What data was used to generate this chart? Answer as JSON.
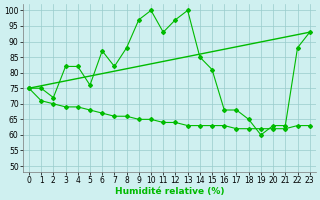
{
  "line1_x": [
    0,
    1,
    2,
    3,
    4,
    5,
    6,
    7,
    8,
    9,
    10,
    11,
    12,
    13,
    14,
    15,
    16,
    17,
    18,
    19,
    20,
    21,
    22,
    23
  ],
  "line1_y": [
    75,
    75,
    72,
    82,
    82,
    76,
    87,
    82,
    88,
    97,
    100,
    93,
    97,
    100,
    85,
    81,
    68,
    68,
    65,
    60,
    63,
    63,
    88,
    93
  ],
  "line2_x": [
    0,
    1,
    2,
    3,
    4,
    5,
    6,
    7,
    8,
    9,
    10,
    11,
    12,
    13,
    14,
    15,
    16,
    17,
    18,
    19,
    20,
    21,
    22,
    23
  ],
  "line2_y": [
    75,
    71,
    70,
    69,
    69,
    68,
    67,
    66,
    66,
    65,
    65,
    64,
    64,
    63,
    63,
    63,
    63,
    62,
    62,
    62,
    62,
    62,
    63,
    63
  ],
  "line3_x": [
    0,
    23
  ],
  "line3_y": [
    75,
    93
  ],
  "xlabel": "Humidité relative (%)",
  "xlim": [
    -0.5,
    23.5
  ],
  "ylim": [
    48,
    102
  ],
  "yticks": [
    50,
    55,
    60,
    65,
    70,
    75,
    80,
    85,
    90,
    95,
    100
  ],
  "xticks": [
    0,
    1,
    2,
    3,
    4,
    5,
    6,
    7,
    8,
    9,
    10,
    11,
    12,
    13,
    14,
    15,
    16,
    17,
    18,
    19,
    20,
    21,
    22,
    23
  ],
  "line_color": "#00bb00",
  "bg_color": "#cff0f0",
  "grid_color": "#99cccc",
  "label_fontsize": 6.5,
  "tick_fontsize": 5.5
}
